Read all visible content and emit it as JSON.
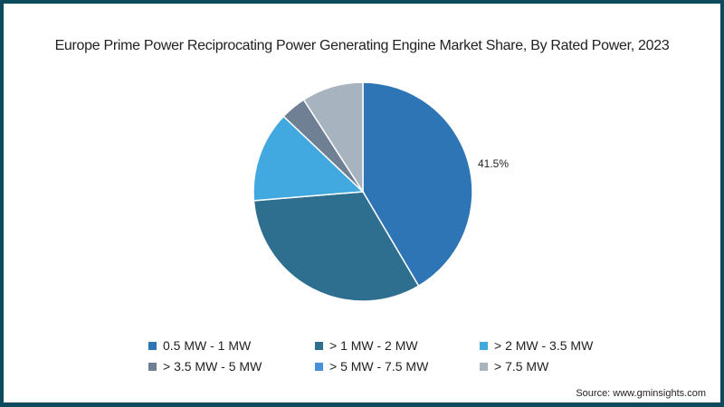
{
  "chart_data": {
    "type": "pie",
    "title": "Europe Prime Power Reciprocating Power Generating Engine Market Share, By Rated Power, 2023",
    "categories": [
      "0.5 MW - 1 MW",
      "> 1 MW - 2 MW",
      "> 2 MW - 3.5 MW",
      "> 3.5 MW - 5 MW",
      "> 5 MW - 7.5 MW",
      "> 7.5 MW"
    ],
    "values": [
      41.5,
      32.2,
      13.4,
      3.8,
      0.0,
      9.1
    ],
    "colors": [
      "#2e75b6",
      "#2e6e8e",
      "#41a8e0",
      "#6f7f94",
      "#4a90d9",
      "#a7b3bf"
    ],
    "data_labels": [
      {
        "category": "0.5 MW - 1 MW",
        "text": "41.5%"
      }
    ],
    "legend_position": "bottom",
    "start_angle": "12 o'clock, clockwise"
  },
  "title": "Europe Prime Power Reciprocating Power Generating Engine Market Share, By Rated Power, 2023",
  "data_label": "41.5%",
  "legend": [
    {
      "label": "0.5 MW - 1 MW",
      "color": "#2e75b6"
    },
    {
      "label": "> 1 MW - 2 MW",
      "color": "#2e6e8e"
    },
    {
      "label": "> 2 MW - 3.5 MW",
      "color": "#41a8e0"
    },
    {
      "label": "> 3.5 MW - 5 MW",
      "color": "#6f7f94"
    },
    {
      "label": "> 5 MW - 7.5 MW",
      "color": "#4a90d9"
    },
    {
      "label": "> 7.5 MW",
      "color": "#a7b3bf"
    }
  ],
  "source": "Source: www.gminsights.com",
  "frame_color": "#0d4a5e"
}
